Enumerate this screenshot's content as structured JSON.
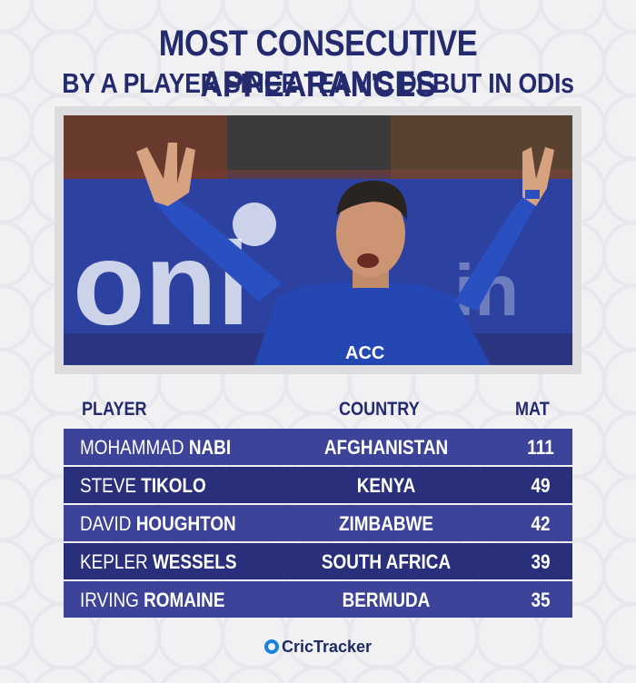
{
  "title": {
    "line1": "MOST CONSECUTIVE APPEARANCES",
    "line2": "BY A PLAYER SINCE TEAM'S DEBUT IN ODIs"
  },
  "photo": {
    "subject": "cricketer-celebrating-photo",
    "jersey_text": "ACC"
  },
  "table": {
    "headers": {
      "player": "PLAYER",
      "country": "COUNTRY",
      "mat": "MAT"
    },
    "rows": [
      {
        "first": "MOHAMMAD",
        "last": "NABI",
        "country": "AFGHANISTAN",
        "mat": "111"
      },
      {
        "first": "STEVE",
        "last": "TIKOLO",
        "country": "KENYA",
        "mat": "49"
      },
      {
        "first": "DAVID",
        "last": "HOUGHTON",
        "country": "ZIMBABWE",
        "mat": "42"
      },
      {
        "first": "KEPLER",
        "last": "WESSELS",
        "country": "SOUTH AFRICA",
        "mat": "39"
      },
      {
        "first": "IRVING",
        "last": "ROMAINE",
        "country": "BERMUDA",
        "mat": "35"
      }
    ]
  },
  "footer": {
    "brand": "CricTracker"
  },
  "colors": {
    "title": "#242a6e",
    "row_dark": "#2a2f7c",
    "row_light": "#3c4399",
    "background": "#f1f1f3",
    "brand_blue": "#1583e0"
  }
}
